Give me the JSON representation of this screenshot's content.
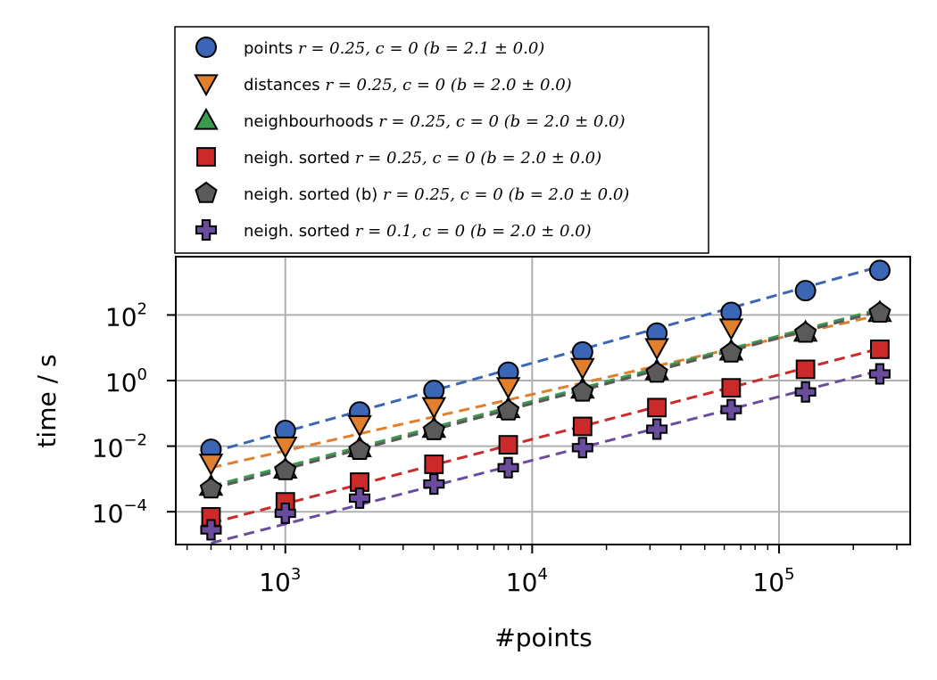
{
  "chart_data": {
    "type": "scatter",
    "xscale": "log",
    "yscale": "log",
    "xlabel": "#points",
    "ylabel": "time / s",
    "xlim": [
      360,
      340000
    ],
    "ylim": [
      1e-05,
      6000
    ],
    "grid": true,
    "legend_position": "above plot, top-left",
    "x_ticks": [
      {
        "base": "10",
        "exp": "3",
        "value": 1000
      },
      {
        "base": "10",
        "exp": "4",
        "value": 10000
      },
      {
        "base": "10",
        "exp": "5",
        "value": 100000
      }
    ],
    "y_ticks": [
      {
        "base": "10",
        "exp": "−4",
        "value": 0.0001
      },
      {
        "base": "10",
        "exp": "−2",
        "value": 0.01
      },
      {
        "base": "10",
        "exp": "0",
        "value": 1
      },
      {
        "base": "10",
        "exp": "2",
        "value": 100
      }
    ],
    "x": [
      500,
      1000,
      2000,
      4000,
      8000,
      16000,
      32000,
      64000,
      128000,
      256000
    ],
    "series": [
      {
        "label_prefix": "points",
        "label_math": "r = 0.25, c = 0 (b = 2.1 ± 0.0)",
        "marker": "circle",
        "color": "#3a66b5",
        "values": [
          0.008,
          0.03,
          0.11,
          0.5,
          1.8,
          7.5,
          28,
          120,
          550,
          2300
        ],
        "fit": [
          0.0065,
          3000
        ]
      },
      {
        "label_prefix": "distances",
        "label_math": "r = 0.25, c = 0 (b = 2.0 ± 0.0)",
        "marker": "triangle-down",
        "color": "#e07f2e",
        "values": [
          0.003,
          0.01,
          0.045,
          0.16,
          0.65,
          2.5,
          10,
          40,
          null,
          null
        ],
        "fit": [
          0.0022,
          100
        ]
      },
      {
        "label_prefix": "neighbourhoods",
        "label_math": "r = 0.25, c = 0 (b = 2.0 ± 0.0)",
        "marker": "triangle-up",
        "color": "#3a9a4e",
        "values": [
          0.0006,
          0.002,
          0.009,
          0.035,
          0.14,
          0.55,
          2.0,
          8.0,
          30,
          120
        ],
        "fit": [
          0.0006,
          150
        ]
      },
      {
        "label_prefix": "neigh. sorted",
        "label_math": "r = 0.25, c = 0 (b = 2.0 ± 0.0)",
        "marker": "square",
        "color": "#cc2a2a",
        "values": [
          7e-05,
          0.0002,
          0.0008,
          0.0028,
          0.011,
          0.04,
          0.15,
          0.6,
          2.2,
          9.0
        ],
        "fit": [
          4.5e-05,
          9.5
        ]
      },
      {
        "label_prefix": "neigh. sorted (b)",
        "label_math": "r = 0.25, c = 0 (b = 2.0 ± 0.0)",
        "marker": "pentagon",
        "color": "#5a5a5a",
        "values": [
          0.0005,
          0.0018,
          0.0075,
          0.03,
          0.12,
          0.45,
          1.7,
          7.0,
          28,
          115
        ],
        "fit": [
          0.0005,
          130
        ]
      },
      {
        "label_prefix": "neigh. sorted",
        "label_math": "r = 0.1, c = 0 (b = 2.0 ± 0.0)",
        "marker": "plus",
        "color": "#6a4c9c",
        "values": [
          2.8e-05,
          9e-05,
          0.00026,
          0.0007,
          0.0022,
          0.009,
          0.033,
          0.13,
          0.45,
          1.6
        ],
        "fit": [
          1.1e-05,
          2.0
        ]
      }
    ]
  }
}
